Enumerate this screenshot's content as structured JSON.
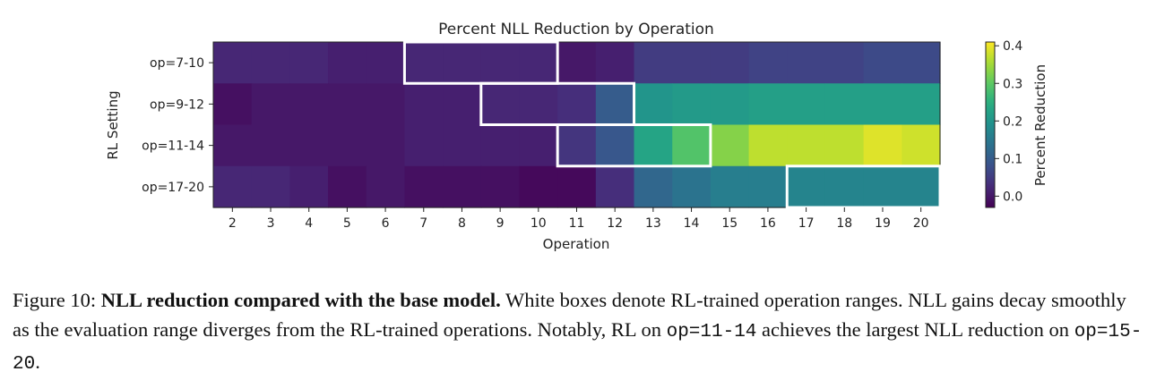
{
  "chart_data": {
    "type": "heatmap",
    "title": "Percent NLL Reduction by Operation",
    "xlabel": "Operation",
    "ylabel": "RL Setting",
    "x": [
      2,
      3,
      4,
      5,
      6,
      7,
      8,
      9,
      10,
      11,
      12,
      13,
      14,
      15,
      16,
      17,
      18,
      19,
      20
    ],
    "rows": [
      "op=7-10",
      "op=9-12",
      "op=11-14",
      "op=17-20"
    ],
    "values": [
      [
        0.02,
        0.02,
        0.02,
        0.01,
        0.01,
        0.02,
        0.02,
        0.02,
        0.02,
        0.0,
        0.01,
        0.05,
        0.05,
        0.05,
        0.06,
        0.06,
        0.06,
        0.07,
        0.07
      ],
      [
        -0.01,
        0.0,
        0.0,
        0.0,
        0.0,
        0.01,
        0.01,
        0.02,
        0.02,
        0.03,
        0.1,
        0.2,
        0.21,
        0.21,
        0.22,
        0.22,
        0.22,
        0.22,
        0.22
      ],
      [
        0.0,
        0.0,
        0.0,
        0.0,
        0.0,
        0.01,
        0.01,
        0.01,
        0.01,
        0.04,
        0.09,
        0.23,
        0.29,
        0.33,
        0.37,
        0.37,
        0.37,
        0.39,
        0.38
      ],
      [
        0.02,
        0.02,
        0.01,
        -0.01,
        0.0,
        -0.01,
        -0.01,
        -0.01,
        -0.02,
        -0.02,
        0.03,
        0.12,
        0.14,
        0.16,
        0.16,
        0.17,
        0.17,
        0.17,
        0.17
      ]
    ],
    "trained_ranges": [
      {
        "row": "op=7-10",
        "from": 7,
        "to": 10
      },
      {
        "row": "op=9-12",
        "from": 9,
        "to": 12
      },
      {
        "row": "op=11-14",
        "from": 11,
        "to": 14
      },
      {
        "row": "op=17-20",
        "from": 17,
        "to": 20
      }
    ],
    "colorbar": {
      "label": "Percent Reduction",
      "colormap": "viridis",
      "vmin": -0.03,
      "vmax": 0.41,
      "ticks": [
        0.0,
        0.1,
        0.2,
        0.3,
        0.4
      ],
      "tick_labels": [
        "0.0",
        "0.1",
        "0.2",
        "0.3",
        "0.4"
      ]
    },
    "highlight_color": "#ffffff"
  },
  "caption": {
    "label": "Figure 10: ",
    "bold": "NLL reduction compared with the base model.",
    "text1": " White boxes denote RL-trained operation ranges. NLL gains decay smoothly as the evaluation range diverges from the RL-trained operations. Notably, RL on ",
    "code1": "op=11-14",
    "text2": " achieves the largest NLL reduction on ",
    "code2": "op=15-20",
    "text3": "."
  }
}
